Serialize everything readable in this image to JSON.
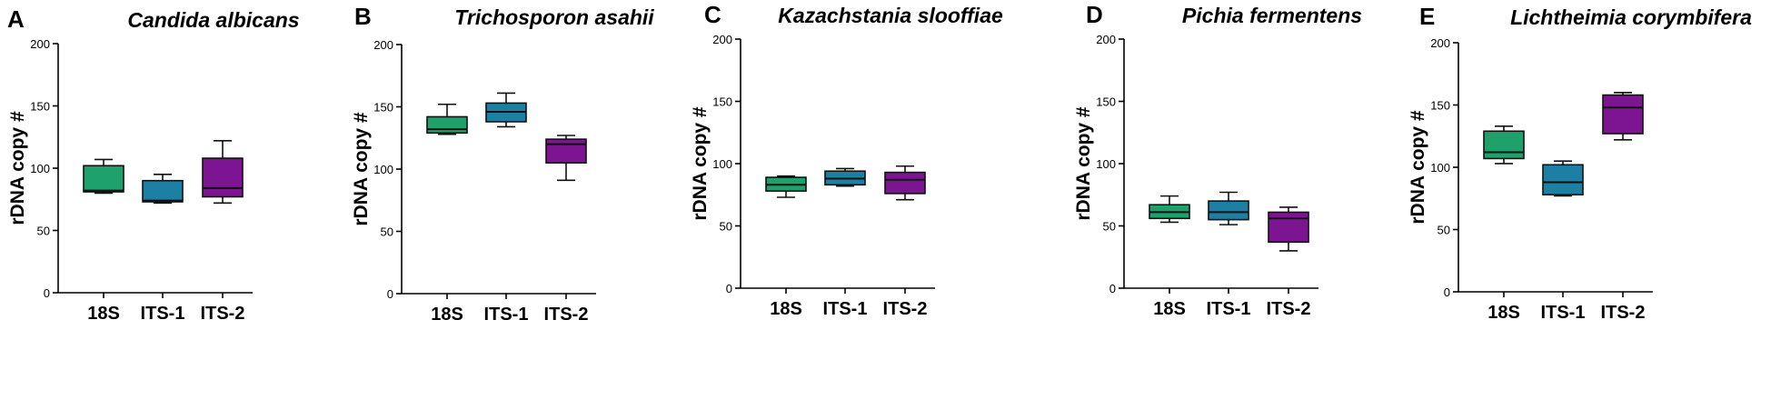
{
  "chart_data": [
    {
      "type": "box",
      "panel": "A",
      "title": "Candida albicans",
      "ylabel": "rDNA copy #",
      "ylim": [
        0,
        200
      ],
      "yticks": [
        "0",
        "50",
        "100",
        "150",
        "200"
      ],
      "categories": [
        "18S",
        "ITS-1",
        "ITS-2"
      ],
      "colors": [
        "#1ea16a",
        "#1c7fa4",
        "#7d1593"
      ],
      "boxes": [
        {
          "min": 80,
          "q1": 81,
          "median": 82,
          "q3": 102,
          "max": 107
        },
        {
          "min": 72,
          "q1": 73,
          "median": 74,
          "q3": 90,
          "max": 95
        },
        {
          "min": 72,
          "q1": 77,
          "median": 84,
          "q3": 108,
          "max": 122
        }
      ]
    },
    {
      "type": "box",
      "panel": "B",
      "title": "Trichosporon asahii",
      "ylabel": "rDNA copy #",
      "ylim": [
        0,
        200
      ],
      "yticks": [
        "0",
        "50",
        "100",
        "150",
        "200"
      ],
      "categories": [
        "18S",
        "ITS-1",
        "ITS-2"
      ],
      "colors": [
        "#1ea16a",
        "#1c7fa4",
        "#7d1593"
      ],
      "boxes": [
        {
          "min": 128,
          "q1": 129,
          "median": 132,
          "q3": 142,
          "max": 152
        },
        {
          "min": 134,
          "q1": 138,
          "median": 146,
          "q3": 153,
          "max": 161
        },
        {
          "min": 91,
          "q1": 105,
          "median": 120,
          "q3": 124,
          "max": 127
        }
      ]
    },
    {
      "type": "box",
      "panel": "C",
      "title": "Kazachstania slooffiae",
      "ylabel": "rDNA copy #",
      "ylim": [
        0,
        200
      ],
      "yticks": [
        "0",
        "50",
        "100",
        "150",
        "200"
      ],
      "categories": [
        "18S",
        "ITS-1",
        "ITS-2"
      ],
      "colors": [
        "#1ea16a",
        "#1c7fa4",
        "#7d1593"
      ],
      "boxes": [
        {
          "min": 73,
          "q1": 78,
          "median": 83,
          "q3": 89,
          "max": 90
        },
        {
          "min": 82,
          "q1": 83,
          "median": 88,
          "q3": 94,
          "max": 96
        },
        {
          "min": 71,
          "q1": 76,
          "median": 87,
          "q3": 93,
          "max": 98
        }
      ]
    },
    {
      "type": "box",
      "panel": "D",
      "title": "Pichia fermentens",
      "ylabel": "rDNA copy #",
      "ylim": [
        0,
        200
      ],
      "yticks": [
        "0",
        "50",
        "100",
        "150",
        "200"
      ],
      "categories": [
        "18S",
        "ITS-1",
        "ITS-2"
      ],
      "colors": [
        "#1ea16a",
        "#1c7fa4",
        "#7d1593"
      ],
      "boxes": [
        {
          "min": 53,
          "q1": 56,
          "median": 61,
          "q3": 67,
          "max": 74
        },
        {
          "min": 51,
          "q1": 55,
          "median": 61,
          "q3": 70,
          "max": 77
        },
        {
          "min": 30,
          "q1": 37,
          "median": 56,
          "q3": 61,
          "max": 65
        }
      ]
    },
    {
      "type": "box",
      "panel": "E",
      "title": "Lichtheimia corymbifera",
      "ylabel": "rDNA copy #",
      "ylim": [
        0,
        200
      ],
      "yticks": [
        "0",
        "50",
        "100",
        "150",
        "200"
      ],
      "categories": [
        "18S",
        "ITS-1",
        "ITS-2"
      ],
      "colors": [
        "#1ea16a",
        "#1c7fa4",
        "#7d1593"
      ],
      "boxes": [
        {
          "min": 103,
          "q1": 107,
          "median": 112,
          "q3": 129,
          "max": 133
        },
        {
          "min": 77,
          "q1": 78,
          "median": 88,
          "q3": 102,
          "max": 105
        },
        {
          "min": 122,
          "q1": 127,
          "median": 148,
          "q3": 158,
          "max": 160
        }
      ]
    }
  ]
}
